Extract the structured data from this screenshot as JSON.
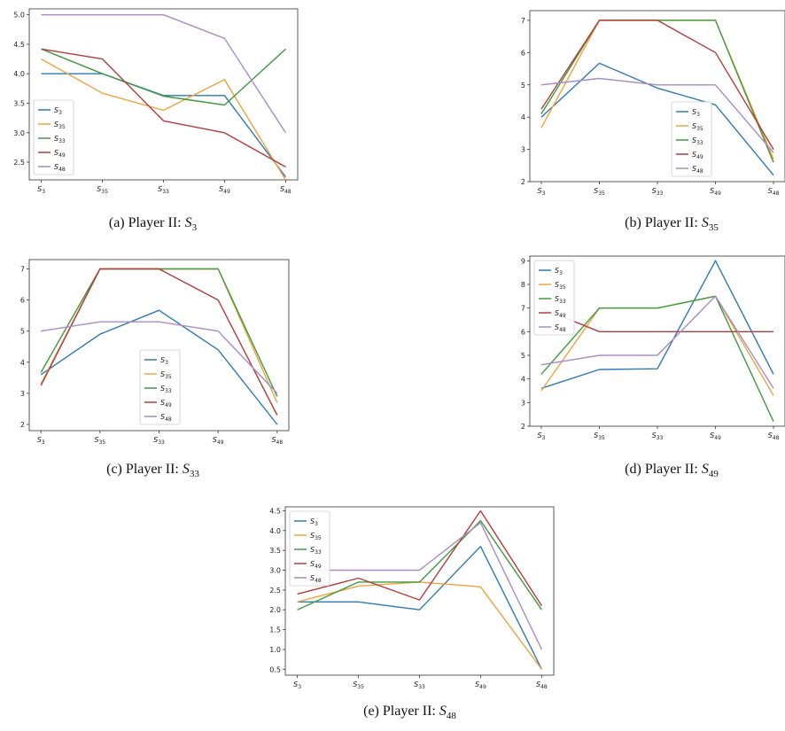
{
  "colors": {
    "S3": "#2b7bb4",
    "S35": "#f0a33c",
    "S33": "#3d9c3d",
    "S49": "#b63b3b",
    "S48": "#a98bc6",
    "axis": "#333333"
  },
  "captions": [
    {
      "prefix": "(a) Player II: ",
      "sym": "S",
      "sub": "3"
    },
    {
      "prefix": "(b) Player II: ",
      "sym": "S",
      "sub": "35"
    },
    {
      "prefix": "(c) Player II: ",
      "sym": "S",
      "sub": "33"
    },
    {
      "prefix": "(d) Player II: ",
      "sym": "S",
      "sub": "49"
    },
    {
      "prefix": "(e) Player II: ",
      "sym": "S",
      "sub": "48"
    }
  ],
  "chart_data": [
    {
      "type": "line",
      "x": [
        "S3",
        "S35",
        "S33",
        "S49",
        "S48"
      ],
      "ylim": [
        2.2,
        5.1
      ],
      "yticks": [
        2.5,
        3.0,
        3.5,
        4.0,
        4.5,
        5.0
      ],
      "ytick_labels": [
        "2.5",
        "3.0",
        "3.5",
        "4.0",
        "4.5",
        "5.0"
      ],
      "legend": "center-left",
      "series": [
        {
          "name": "S3",
          "values": [
            4.0,
            4.0,
            3.63,
            3.63,
            2.25
          ]
        },
        {
          "name": "S35",
          "values": [
            4.25,
            3.67,
            3.38,
            3.9,
            2.2
          ]
        },
        {
          "name": "S33",
          "values": [
            4.42,
            4.0,
            3.62,
            3.47,
            4.42
          ]
        },
        {
          "name": "S49",
          "values": [
            4.42,
            4.25,
            3.2,
            3.0,
            2.42
          ]
        },
        {
          "name": "S48",
          "values": [
            5.0,
            5.0,
            5.0,
            4.6,
            3.0
          ]
        }
      ]
    },
    {
      "type": "line",
      "x": [
        "S3",
        "S35",
        "S33",
        "S49",
        "S48"
      ],
      "ylim": [
        2.0,
        7.3
      ],
      "yticks": [
        2,
        3,
        4,
        5,
        6,
        7
      ],
      "ytick_labels": [
        "2",
        "3",
        "4",
        "5",
        "6",
        "7"
      ],
      "legend": "center-right",
      "series": [
        {
          "name": "S3",
          "values": [
            4.0,
            5.67,
            4.9,
            4.38,
            2.2
          ]
        },
        {
          "name": "S35",
          "values": [
            3.67,
            7.0,
            7.0,
            7.0,
            2.7
          ]
        },
        {
          "name": "S33",
          "values": [
            4.1,
            7.0,
            7.0,
            7.0,
            2.6
          ]
        },
        {
          "name": "S49",
          "values": [
            4.25,
            7.0,
            7.0,
            6.0,
            3.0
          ]
        },
        {
          "name": "S48",
          "values": [
            5.0,
            5.2,
            5.0,
            5.0,
            2.9
          ]
        }
      ]
    },
    {
      "type": "line",
      "x": [
        "S3",
        "S35",
        "S33",
        "S49",
        "S48"
      ],
      "ylim": [
        1.8,
        7.3
      ],
      "yticks": [
        2,
        3,
        4,
        5,
        6,
        7
      ],
      "ytick_labels": [
        "2",
        "3",
        "4",
        "5",
        "6",
        "7"
      ],
      "legend": "center",
      "series": [
        {
          "name": "S3",
          "values": [
            3.6,
            4.9,
            5.67,
            4.4,
            2.0
          ]
        },
        {
          "name": "S35",
          "values": [
            3.3,
            7.0,
            7.0,
            7.0,
            2.7
          ]
        },
        {
          "name": "S33",
          "values": [
            3.67,
            7.0,
            7.0,
            7.0,
            2.9
          ]
        },
        {
          "name": "S49",
          "values": [
            3.25,
            7.0,
            7.0,
            6.0,
            2.3
          ]
        },
        {
          "name": "S48",
          "values": [
            5.0,
            5.3,
            5.3,
            5.0,
            3.0
          ]
        }
      ]
    },
    {
      "type": "line",
      "x": [
        "S3",
        "S35",
        "S33",
        "S49",
        "S48"
      ],
      "ylim": [
        2.0,
        9.2
      ],
      "yticks": [
        2,
        3,
        4,
        5,
        6,
        7,
        8,
        9
      ],
      "ytick_labels": [
        "2",
        "3",
        "4",
        "5",
        "6",
        "7",
        "8",
        "9"
      ],
      "legend": "top-left",
      "series": [
        {
          "name": "S3",
          "values": [
            3.6,
            4.4,
            4.43,
            9.0,
            4.2
          ]
        },
        {
          "name": "S35",
          "values": [
            3.5,
            7.0,
            7.0,
            7.5,
            3.3
          ]
        },
        {
          "name": "S33",
          "values": [
            4.2,
            7.0,
            7.0,
            7.5,
            2.2
          ]
        },
        {
          "name": "S49",
          "values": [
            7.0,
            6.0,
            6.0,
            6.0,
            6.0
          ]
        },
        {
          "name": "S48",
          "values": [
            4.6,
            5.0,
            5.0,
            7.5,
            3.6
          ]
        }
      ]
    },
    {
      "type": "line",
      "x": [
        "S3",
        "S35",
        "S33",
        "S49",
        "S48"
      ],
      "ylim": [
        0.35,
        4.6
      ],
      "yticks": [
        0.5,
        1.0,
        1.5,
        2.0,
        2.5,
        3.0,
        3.5,
        4.0,
        4.5
      ],
      "ytick_labels": [
        "0.5",
        "1.0",
        "1.5",
        "2.0",
        "2.5",
        "3.0",
        "3.5",
        "4.0",
        "4.5"
      ],
      "legend": "top-left",
      "series": [
        {
          "name": "S3",
          "values": [
            2.2,
            2.2,
            2.0,
            3.6,
            0.5
          ]
        },
        {
          "name": "S35",
          "values": [
            2.2,
            2.6,
            2.7,
            2.58,
            0.5
          ]
        },
        {
          "name": "S33",
          "values": [
            2.0,
            2.7,
            2.7,
            4.25,
            2.0
          ]
        },
        {
          "name": "S49",
          "values": [
            2.4,
            2.8,
            2.25,
            4.5,
            2.1
          ]
        },
        {
          "name": "S48",
          "values": [
            3.0,
            3.0,
            3.0,
            4.2,
            1.0
          ]
        }
      ]
    }
  ]
}
